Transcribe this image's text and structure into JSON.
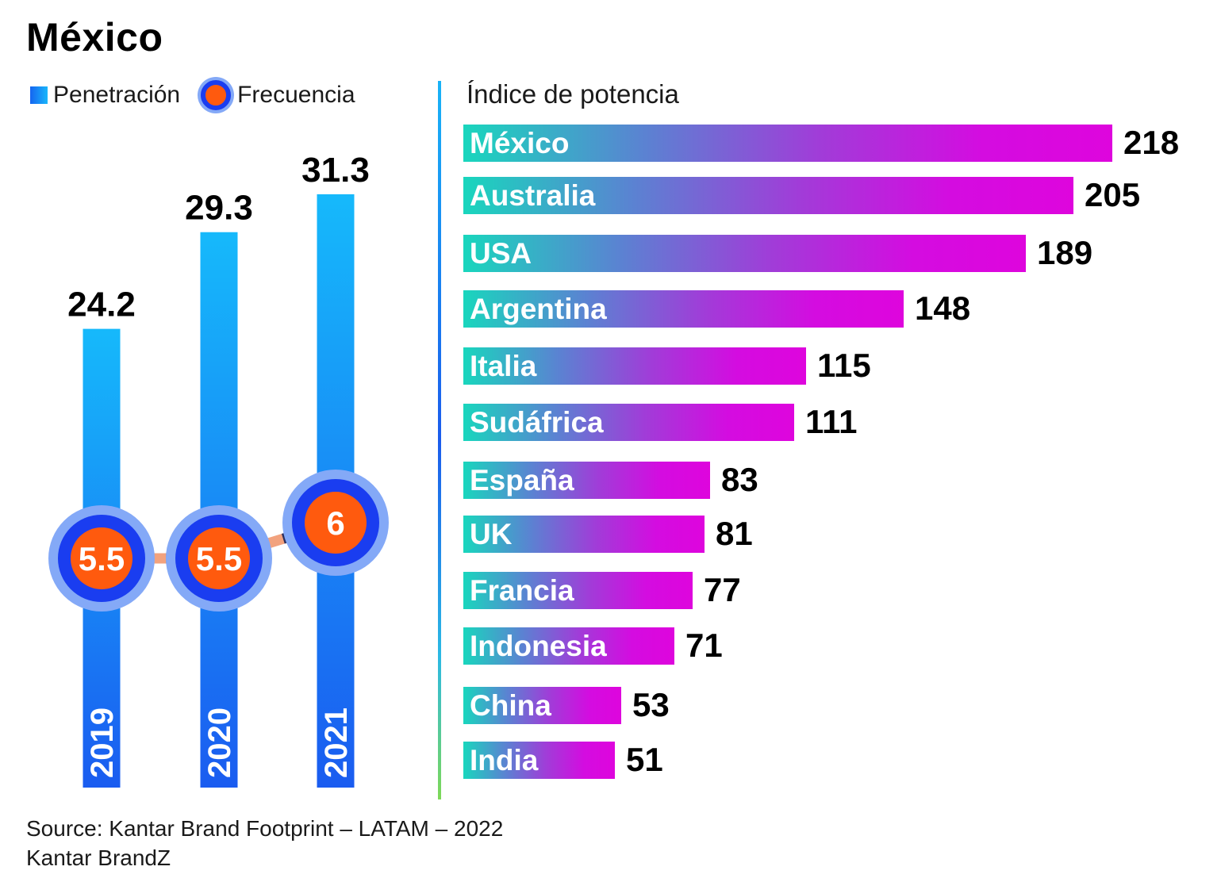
{
  "title": "México",
  "legend": {
    "penetration": "Penetración",
    "frequency": "Frecuencia"
  },
  "colors": {
    "bar_top": "#16b9fb",
    "bar_bottom": "#1a5cf0",
    "dot_fill": "#ff5a0e",
    "dot_ring": "#1a3df0",
    "dot_halo": "#84a9f7",
    "hbar_start": "#19d6bd",
    "hbar_end": "#de05dd"
  },
  "chart_data": [
    {
      "type": "bar",
      "categories": [
        "2019",
        "2020",
        "2021"
      ],
      "series": [
        {
          "name": "Penetración",
          "values": [
            24.2,
            29.3,
            31.3
          ],
          "labels": [
            "24.2",
            "29.3",
            "31.3"
          ]
        },
        {
          "name": "Frecuencia",
          "values": [
            5.5,
            5.5,
            6
          ],
          "labels": [
            "5.5",
            "5.5",
            "6"
          ]
        }
      ]
    },
    {
      "type": "bar",
      "orientation": "horizontal",
      "title": "Índice de potencia",
      "categories": [
        "México",
        "Australia",
        "USA",
        "Argentina",
        "Italia",
        "Sudáfrica",
        "España",
        "UK",
        "Francia",
        "Indonesia",
        "China",
        "India"
      ],
      "values": [
        218,
        205,
        189,
        148,
        115,
        111,
        83,
        81,
        77,
        71,
        53,
        51
      ]
    }
  ],
  "source": {
    "line1": "Source: Kantar Brand Footprint – LATAM – 2022",
    "line2": "Kantar BrandZ"
  }
}
